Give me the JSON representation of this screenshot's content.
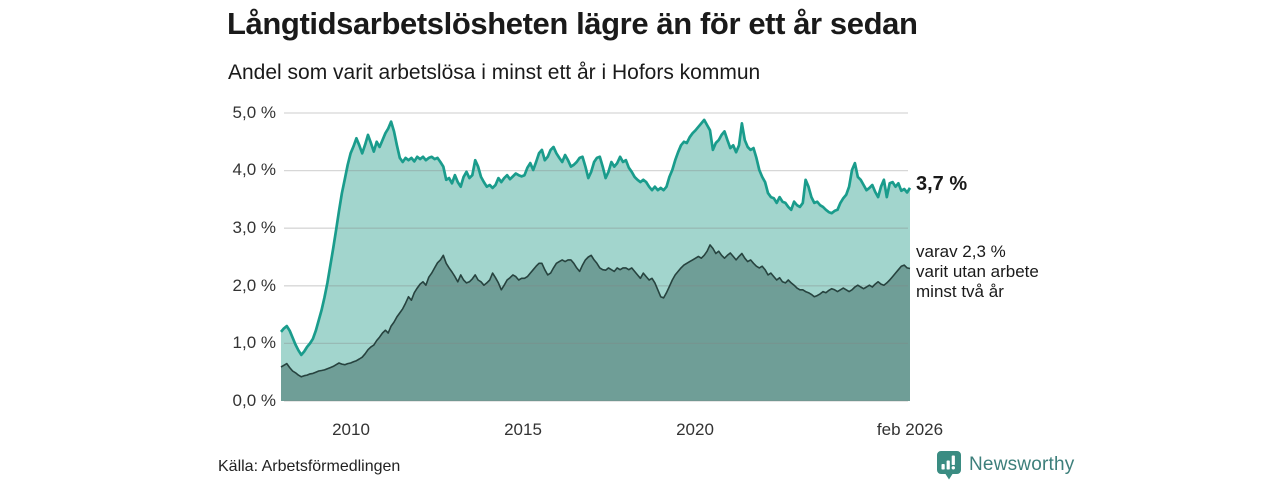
{
  "header": {
    "title": "Långtidsarbetslösheten lägre än för ett år sedan",
    "subtitle": "Andel som varit arbetslösa i minst ett år i Hofors kommun"
  },
  "chart_data": {
    "type": "area",
    "title": "Långtidsarbetslösheten lägre än för ett år sedan",
    "subtitle": "Andel som varit arbetslösa i minst ett år i Hofors kommun",
    "unit": "%",
    "ylim": [
      0,
      5
    ],
    "grid": true,
    "legend_position": "none",
    "x_start": "2008-01",
    "x_end": "2026-02",
    "x_interval": "monthly",
    "x_ticks": [
      "2010",
      "2015",
      "2020",
      "feb 2026"
    ],
    "y_ticks": [
      "0,0 %",
      "1,0 %",
      "2,0 %",
      "3,0 %",
      "4,0 %",
      "5,0 %"
    ],
    "series": [
      {
        "name": "Andel som varit arbetslösa i minst ett år",
        "line_color": "#1a9c8c",
        "fill_color": "#a2d5cd",
        "latest_value": 3.7,
        "values": [
          1.2,
          1.26,
          1.3,
          1.22,
          1.1,
          0.98,
          0.88,
          0.8,
          0.86,
          0.94,
          1.0,
          1.08,
          1.22,
          1.4,
          1.58,
          1.8,
          2.05,
          2.35,
          2.65,
          2.97,
          3.3,
          3.61,
          3.85,
          4.1,
          4.3,
          4.42,
          4.56,
          4.44,
          4.3,
          4.45,
          4.62,
          4.48,
          4.33,
          4.5,
          4.41,
          4.53,
          4.65,
          4.73,
          4.85,
          4.68,
          4.44,
          4.22,
          4.15,
          4.22,
          4.18,
          4.22,
          4.16,
          4.24,
          4.2,
          4.24,
          4.18,
          4.22,
          4.24,
          4.2,
          4.22,
          4.15,
          4.07,
          3.84,
          3.87,
          3.78,
          3.92,
          3.8,
          3.72,
          3.89,
          3.98,
          3.87,
          3.92,
          4.18,
          4.07,
          3.89,
          3.8,
          3.72,
          3.75,
          3.7,
          3.75,
          3.87,
          3.8,
          3.87,
          3.92,
          3.85,
          3.9,
          3.95,
          3.92,
          3.9,
          3.92,
          4.05,
          4.13,
          4.01,
          4.15,
          4.3,
          4.36,
          4.18,
          4.24,
          4.36,
          4.41,
          4.3,
          4.22,
          4.15,
          4.27,
          4.18,
          4.07,
          4.1,
          4.15,
          4.22,
          4.24,
          4.07,
          3.87,
          3.98,
          4.15,
          4.22,
          4.24,
          4.07,
          3.87,
          3.98,
          4.15,
          4.07,
          4.13,
          4.24,
          4.15,
          4.18,
          4.05,
          3.98,
          3.89,
          3.84,
          3.8,
          3.84,
          3.8,
          3.72,
          3.66,
          3.72,
          3.66,
          3.7,
          3.66,
          3.72,
          3.89,
          4.01,
          4.18,
          4.32,
          4.44,
          4.5,
          4.48,
          4.58,
          4.65,
          4.7,
          4.76,
          4.82,
          4.88,
          4.79,
          4.7,
          4.36,
          4.48,
          4.53,
          4.62,
          4.68,
          4.53,
          4.39,
          4.44,
          4.32,
          4.44,
          4.82,
          4.53,
          4.41,
          4.36,
          4.39,
          4.22,
          4.01,
          3.89,
          3.8,
          3.61,
          3.54,
          3.52,
          3.44,
          3.54,
          3.46,
          3.44,
          3.37,
          3.32,
          3.46,
          3.4,
          3.37,
          3.44,
          3.84,
          3.72,
          3.54,
          3.44,
          3.46,
          3.4,
          3.37,
          3.32,
          3.28,
          3.26,
          3.3,
          3.32,
          3.44,
          3.52,
          3.58,
          3.72,
          4.01,
          4.13,
          3.89,
          3.84,
          3.75,
          3.66,
          3.7,
          3.75,
          3.63,
          3.54,
          3.72,
          3.84,
          3.54,
          3.78,
          3.8,
          3.72,
          3.78,
          3.65,
          3.68,
          3.62,
          3.7
        ]
      },
      {
        "name": "varav utan arbete minst två år",
        "line_color": "#27433f",
        "fill_color": "#6f9e97",
        "latest_value": 2.3,
        "values": [
          0.59,
          0.62,
          0.65,
          0.58,
          0.52,
          0.49,
          0.45,
          0.42,
          0.44,
          0.45,
          0.47,
          0.48,
          0.5,
          0.52,
          0.53,
          0.54,
          0.56,
          0.58,
          0.6,
          0.63,
          0.66,
          0.64,
          0.63,
          0.65,
          0.66,
          0.68,
          0.7,
          0.73,
          0.76,
          0.82,
          0.89,
          0.94,
          0.97,
          1.05,
          1.11,
          1.18,
          1.23,
          1.18,
          1.3,
          1.37,
          1.46,
          1.53,
          1.6,
          1.7,
          1.81,
          1.75,
          1.88,
          1.96,
          2.03,
          2.07,
          2.01,
          2.15,
          2.22,
          2.31,
          2.4,
          2.45,
          2.53,
          2.39,
          2.31,
          2.24,
          2.16,
          2.07,
          2.19,
          2.1,
          2.05,
          2.07,
          2.12,
          2.19,
          2.1,
          2.07,
          2.01,
          2.05,
          2.1,
          2.22,
          2.14,
          2.05,
          1.93,
          2.01,
          2.1,
          2.14,
          2.19,
          2.16,
          2.1,
          2.13,
          2.13,
          2.16,
          2.22,
          2.28,
          2.34,
          2.39,
          2.39,
          2.28,
          2.19,
          2.22,
          2.31,
          2.39,
          2.42,
          2.45,
          2.42,
          2.45,
          2.45,
          2.39,
          2.31,
          2.25,
          2.36,
          2.45,
          2.5,
          2.53,
          2.45,
          2.39,
          2.31,
          2.28,
          2.27,
          2.31,
          2.28,
          2.25,
          2.31,
          2.28,
          2.31,
          2.31,
          2.28,
          2.31,
          2.25,
          2.19,
          2.13,
          2.22,
          2.16,
          2.1,
          2.13,
          2.05,
          1.93,
          1.81,
          1.79,
          1.88,
          1.99,
          2.1,
          2.19,
          2.25,
          2.31,
          2.36,
          2.39,
          2.42,
          2.45,
          2.48,
          2.51,
          2.48,
          2.53,
          2.6,
          2.71,
          2.65,
          2.56,
          2.6,
          2.53,
          2.48,
          2.53,
          2.57,
          2.51,
          2.45,
          2.51,
          2.56,
          2.48,
          2.42,
          2.45,
          2.39,
          2.34,
          2.31,
          2.34,
          2.28,
          2.19,
          2.22,
          2.16,
          2.1,
          2.14,
          2.07,
          2.05,
          2.1,
          2.05,
          2.01,
          1.96,
          1.93,
          1.93,
          1.9,
          1.88,
          1.85,
          1.81,
          1.83,
          1.86,
          1.9,
          1.88,
          1.92,
          1.95,
          1.93,
          1.9,
          1.93,
          1.96,
          1.93,
          1.9,
          1.93,
          1.98,
          2.01,
          1.98,
          1.95,
          1.98,
          2.01,
          1.98,
          2.03,
          2.07,
          2.03,
          2.01,
          2.05,
          2.1,
          2.16,
          2.22,
          2.28,
          2.34,
          2.36,
          2.31,
          2.3
        ]
      }
    ],
    "annotations": {
      "latest_total_label": "3,7 %",
      "latest_two_year_lines": [
        "varav 2,3 %",
        "varit utan arbete",
        "minst två år"
      ]
    }
  },
  "footer": {
    "source": "Källa: Arbetsförmedlingen",
    "brand": "Newsworthy"
  },
  "colors": {
    "accent_teal": "#1a9c8c",
    "fill_light": "#a2d5cd",
    "fill_dark": "#6f9e97",
    "line_dark": "#27433f",
    "brand_teal": "#3d7f7b",
    "grid": "#d9d9d9",
    "text": "#1a1a1a"
  }
}
